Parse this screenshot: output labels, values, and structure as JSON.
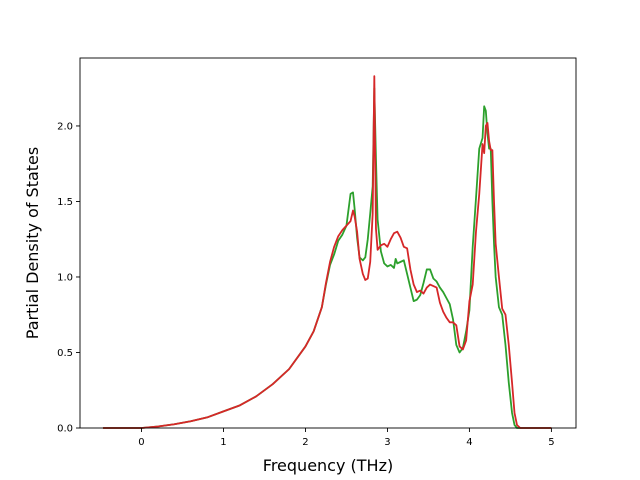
{
  "chart_data": {
    "type": "line",
    "title": "",
    "xlabel": "Frequency (THz)",
    "ylabel": "Partial Density of States",
    "xlim": [
      -0.75,
      5.3
    ],
    "ylim": [
      0,
      2.45
    ],
    "xticks": [
      0,
      1,
      2,
      3,
      4,
      5
    ],
    "xtick_labels": [
      "0",
      "1",
      "2",
      "3",
      "4",
      "5"
    ],
    "yticks": [
      0.0,
      0.5,
      1.0,
      1.5,
      2.0
    ],
    "ytick_labels": [
      "0.0",
      "0.5",
      "1.0",
      "1.5",
      "2.0"
    ],
    "grid": false,
    "legend": "none",
    "series": [
      {
        "color": "#2ca02c",
        "x": [
          -0.47,
          0.0,
          0.2,
          0.4,
          0.6,
          0.8,
          1.0,
          1.2,
          1.4,
          1.6,
          1.8,
          2.0,
          2.1,
          2.2,
          2.25,
          2.3,
          2.35,
          2.4,
          2.45,
          2.5,
          2.55,
          2.58,
          2.6,
          2.63,
          2.66,
          2.7,
          2.73,
          2.76,
          2.79,
          2.82,
          2.84,
          2.86,
          2.88,
          2.92,
          2.96,
          3.0,
          3.04,
          3.08,
          3.1,
          3.12,
          3.16,
          3.2,
          3.24,
          3.28,
          3.32,
          3.36,
          3.4,
          3.44,
          3.48,
          3.52,
          3.56,
          3.6,
          3.64,
          3.68,
          3.72,
          3.76,
          3.8,
          3.84,
          3.88,
          3.92,
          3.96,
          4.0,
          4.04,
          4.08,
          4.12,
          4.16,
          4.18,
          4.2,
          4.22,
          4.24,
          4.26,
          4.28,
          4.3,
          4.32,
          4.36,
          4.4,
          4.44,
          4.48,
          4.52,
          4.55,
          4.58,
          4.62,
          4.7,
          5.0
        ],
        "y": [
          0.0,
          0.0,
          0.01,
          0.025,
          0.045,
          0.07,
          0.11,
          0.15,
          0.21,
          0.29,
          0.39,
          0.54,
          0.64,
          0.8,
          0.95,
          1.08,
          1.15,
          1.24,
          1.28,
          1.34,
          1.55,
          1.56,
          1.45,
          1.26,
          1.13,
          1.11,
          1.13,
          1.25,
          1.42,
          1.6,
          2.25,
          1.78,
          1.38,
          1.17,
          1.09,
          1.07,
          1.08,
          1.06,
          1.12,
          1.09,
          1.1,
          1.11,
          1.02,
          0.93,
          0.84,
          0.85,
          0.88,
          0.96,
          1.05,
          1.05,
          0.99,
          0.97,
          0.93,
          0.9,
          0.86,
          0.82,
          0.72,
          0.55,
          0.5,
          0.53,
          0.64,
          0.78,
          1.2,
          1.52,
          1.85,
          1.92,
          2.13,
          2.1,
          1.95,
          1.85,
          1.85,
          1.5,
          1.22,
          1.0,
          0.8,
          0.75,
          0.55,
          0.3,
          0.1,
          0.02,
          0.0,
          0.0,
          0.0,
          0.0
        ]
      },
      {
        "color": "#d62728",
        "x": [
          -0.47,
          0.0,
          0.2,
          0.4,
          0.6,
          0.8,
          1.0,
          1.2,
          1.4,
          1.6,
          1.8,
          2.0,
          2.1,
          2.2,
          2.25,
          2.3,
          2.35,
          2.4,
          2.45,
          2.5,
          2.55,
          2.58,
          2.6,
          2.63,
          2.66,
          2.7,
          2.73,
          2.76,
          2.79,
          2.82,
          2.84,
          2.86,
          2.88,
          2.92,
          2.96,
          3.0,
          3.04,
          3.08,
          3.12,
          3.16,
          3.2,
          3.24,
          3.28,
          3.32,
          3.36,
          3.4,
          3.44,
          3.48,
          3.52,
          3.56,
          3.6,
          3.64,
          3.68,
          3.72,
          3.76,
          3.8,
          3.84,
          3.88,
          3.92,
          3.96,
          4.0,
          4.04,
          4.08,
          4.12,
          4.16,
          4.18,
          4.2,
          4.22,
          4.24,
          4.26,
          4.28,
          4.3,
          4.32,
          4.36,
          4.4,
          4.44,
          4.48,
          4.52,
          4.55,
          4.58,
          4.62,
          4.7,
          5.0
        ],
        "y": [
          0.0,
          0.0,
          0.01,
          0.025,
          0.045,
          0.07,
          0.11,
          0.15,
          0.21,
          0.29,
          0.39,
          0.54,
          0.64,
          0.8,
          0.96,
          1.1,
          1.2,
          1.27,
          1.31,
          1.34,
          1.37,
          1.44,
          1.4,
          1.3,
          1.12,
          1.02,
          0.98,
          0.99,
          1.1,
          1.42,
          2.33,
          1.32,
          1.18,
          1.21,
          1.22,
          1.2,
          1.25,
          1.29,
          1.3,
          1.26,
          1.2,
          1.19,
          1.05,
          0.95,
          0.9,
          0.91,
          0.89,
          0.93,
          0.95,
          0.94,
          0.93,
          0.83,
          0.77,
          0.73,
          0.7,
          0.7,
          0.68,
          0.54,
          0.52,
          0.58,
          0.84,
          0.95,
          1.3,
          1.55,
          1.88,
          1.82,
          2.0,
          2.02,
          1.9,
          1.84,
          1.84,
          1.5,
          1.22,
          1.0,
          0.79,
          0.75,
          0.55,
          0.3,
          0.1,
          0.02,
          0.0,
          0.0,
          0.0
        ]
      }
    ]
  }
}
